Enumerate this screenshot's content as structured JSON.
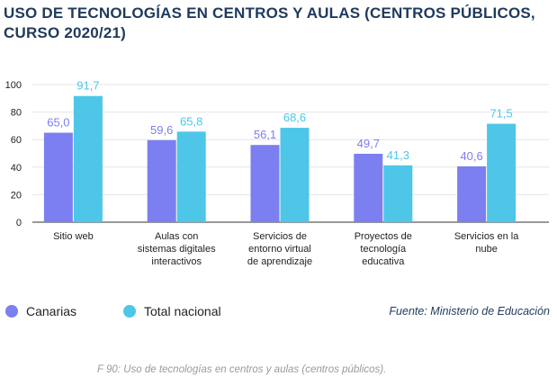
{
  "title_line1": "USO DE TECNOLOGÍAS EN CENTROS Y AULAS (CENTROS PÚBLICOS,",
  "title_line2": "CURSO 2020/21)",
  "legend": {
    "canarias": "Canarias",
    "total": "Total nacional"
  },
  "source": "Fuente: Ministerio de Educación",
  "caption": "F 90: Uso de tecnologías en centros y aulas (centros públicos).",
  "colors": {
    "canarias": "#7b7ff0",
    "total": "#4ec6e8",
    "canarias_label": "#7b7ff0",
    "total_label": "#4ec6e8"
  },
  "chart_data": {
    "type": "bar",
    "categories": [
      [
        "Sitio web"
      ],
      [
        "Aulas con",
        "sistemas digitales",
        "interactivos"
      ],
      [
        "Servicios de",
        "entorno virtual",
        "de aprendizaje"
      ],
      [
        "Proyectos de",
        "tecnología",
        "educativa"
      ],
      [
        "Servicios en la",
        "nube"
      ]
    ],
    "series": [
      {
        "name": "Canarias",
        "values": [
          65.0,
          59.6,
          56.1,
          49.7,
          40.6
        ],
        "labels": [
          "65,0",
          "59,6",
          "56,1",
          "49,7",
          "40,6"
        ]
      },
      {
        "name": "Total nacional",
        "values": [
          91.7,
          65.8,
          68.6,
          41.3,
          71.5
        ],
        "labels": [
          "91,7",
          "65,8",
          "68,6",
          "41,3",
          "71,5"
        ]
      }
    ],
    "yticks": [
      0,
      20,
      40,
      60,
      80,
      100
    ],
    "ylim": [
      0,
      100
    ],
    "grid": true,
    "legend_position": "bottom-left"
  }
}
